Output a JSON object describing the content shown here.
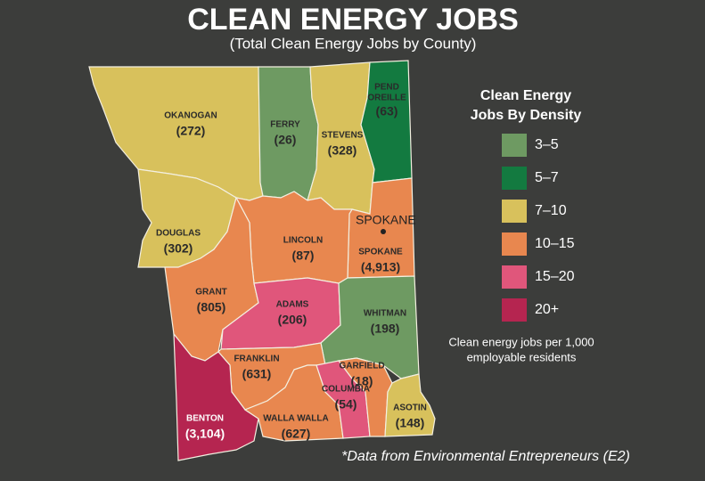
{
  "header": {
    "title": "CLEAN ENERGY JOBS",
    "subtitle": "(Total Clean Energy Jobs by County)"
  },
  "counties": [
    {
      "name": "OKANOGAN",
      "jobs": "(272)",
      "color": "#d8c15c"
    },
    {
      "name": "FERRY",
      "jobs": "(26)",
      "color": "#6e9a62"
    },
    {
      "name": "STEVENS",
      "jobs": "(328)",
      "color": "#d8c15c"
    },
    {
      "name_lines": [
        "PEND",
        "OREILLE"
      ],
      "jobs": "(63)",
      "color": "#137a40"
    },
    {
      "name": "DOUGLAS",
      "jobs": "(302)",
      "color": "#d8c15c"
    },
    {
      "name": "SPOKANE",
      "jobs": "(4,913)",
      "color": "#e8874f"
    },
    {
      "name": "LINCOLN",
      "jobs": "(87)",
      "color": "#e8874f"
    },
    {
      "name": "GRANT",
      "jobs": "(805)",
      "color": "#e8874f"
    },
    {
      "name": "ADAMS",
      "jobs": "(206)",
      "color": "#e0567b"
    },
    {
      "name": "WHITMAN",
      "jobs": "(198)",
      "color": "#6e9a62"
    },
    {
      "name": "FRANKLIN",
      "jobs": "(631)",
      "color": "#e8874f"
    },
    {
      "name": "BENTON",
      "jobs": "(3,104)",
      "color": "#b52550"
    },
    {
      "name": "WALLA WALLA",
      "jobs": "(627)",
      "color": "#e8874f"
    },
    {
      "name": "COLUMBIA",
      "jobs": "(54)",
      "color": "#e0567b"
    },
    {
      "name": "GARFIELD",
      "jobs": "(18)",
      "color": "#e8874f"
    },
    {
      "name": "ASOTIN",
      "jobs": "(148)",
      "color": "#d8c15c"
    }
  ],
  "city": "SPOKANE",
  "legend": {
    "title_lines": [
      "Clean Energy",
      "Jobs By Density"
    ],
    "items": [
      {
        "label": "3–5",
        "color": "#6e9a62"
      },
      {
        "label": "5–7",
        "color": "#137a40"
      },
      {
        "label": "7–10",
        "color": "#d8c15c"
      },
      {
        "label": "10–15",
        "color": "#e8874f"
      },
      {
        "label": "15–20",
        "color": "#e0567b"
      },
      {
        "label": "20+",
        "color": "#b52550"
      }
    ],
    "note_lines": [
      "Clean energy jobs per 1,000",
      "employable residents"
    ]
  },
  "source": "*Data from Environmental Entrepreneurs (E2)"
}
